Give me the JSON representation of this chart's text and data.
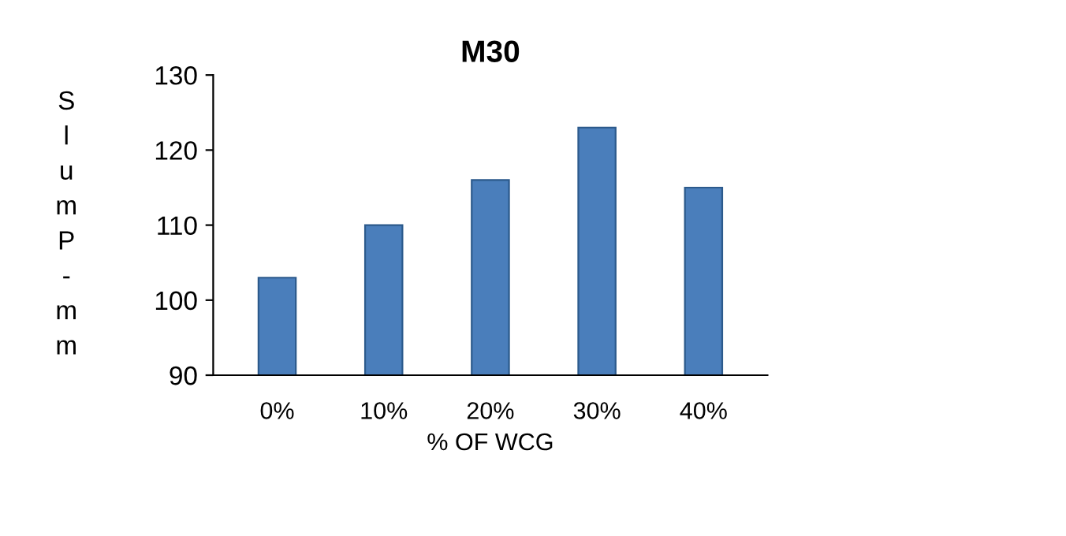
{
  "chart_data": {
    "type": "bar",
    "title": "M30",
    "xlabel": "% OF WCG",
    "ylabel": "SlumP-mm",
    "categories": [
      "0%",
      "10%",
      "20%",
      "30%",
      "40%"
    ],
    "values": [
      103,
      110,
      116,
      123,
      115
    ],
    "color": "#4a7ebb",
    "ylim": [
      90,
      130
    ],
    "yticks": [
      90,
      100,
      110,
      120,
      130
    ],
    "grid": false,
    "legend": false
  }
}
